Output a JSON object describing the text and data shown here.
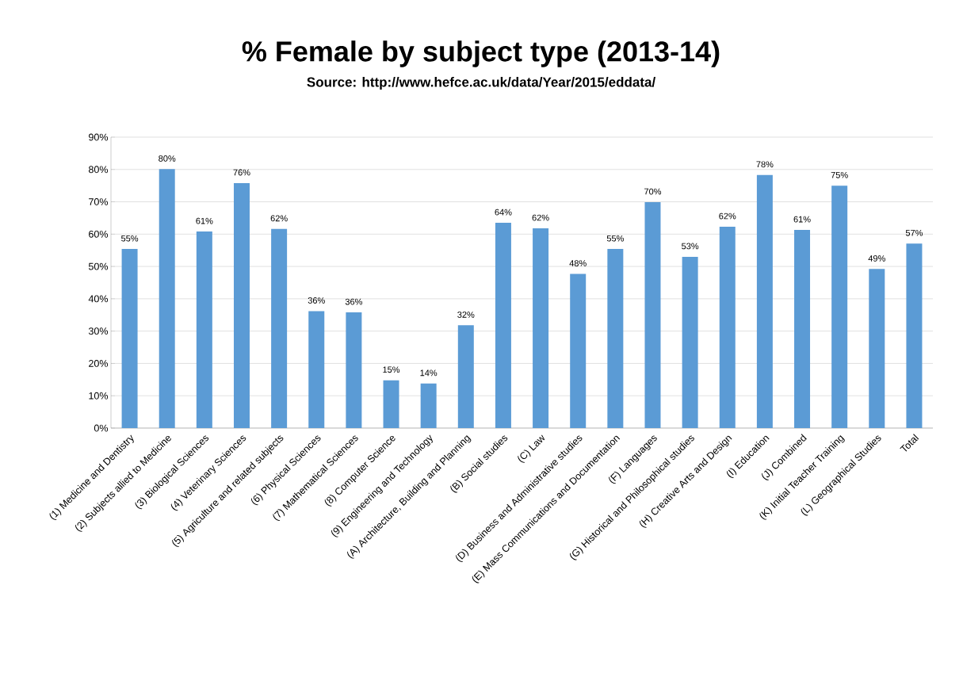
{
  "chart_data": {
    "type": "bar",
    "title": "% Female by subject type (2013-14)",
    "subtitle": "Source: http://www.hefce.ac.uk/data/Year/2015/eddata/",
    "categories": [
      "(1) Medicine and Dentistry",
      "(2) Subjects allied to Medicine",
      "(3) Biological Sciences",
      "(4) Veterinary Sciences",
      "(5) Agriculture and related subjects",
      "(6) Physical Sciences",
      "(7) Mathematical Sciences",
      "(8) Computer Science",
      "(9) Engineering and Technology",
      "(A) Architecture, Building and Planning",
      "(B) Social studies",
      "(C) Law",
      "(D) Business and Administrative studies",
      "(E) Mass Communications and Documentation",
      "(F) Languages",
      "(G) Historical and Philosophical studies",
      "(H) Creative Arts and Design",
      "(I) Education",
      "(J) Combined",
      "(K) Initial Teacher Training",
      "(L) Geographical Studies",
      "Total"
    ],
    "values": [
      55.4,
      80.1,
      60.8,
      75.8,
      61.6,
      36.2,
      35.8,
      14.8,
      13.8,
      31.8,
      63.5,
      61.8,
      47.7,
      55.4,
      69.9,
      53.0,
      62.3,
      78.3,
      61.3,
      75.0,
      49.2,
      57.1
    ],
    "value_labels": [
      "55%",
      "80%",
      "61%",
      "76%",
      "62%",
      "36%",
      "36%",
      "15%",
      "14%",
      "32%",
      "64%",
      "62%",
      "48%",
      "55%",
      "70%",
      "53%",
      "62%",
      "78%",
      "61%",
      "75%",
      "49%",
      "57%"
    ],
    "color": "#5b9bd5",
    "ylim": [
      0,
      90
    ],
    "yticks": [
      {
        "value": 0,
        "label": "0%"
      },
      {
        "value": 10,
        "label": "10%"
      },
      {
        "value": 20,
        "label": "20%"
      },
      {
        "value": 30,
        "label": "30%"
      },
      {
        "value": 40,
        "label": "40%"
      },
      {
        "value": 50,
        "label": "50%"
      },
      {
        "value": 60,
        "label": "60%"
      },
      {
        "value": 70,
        "label": "70%"
      },
      {
        "value": 80,
        "label": "80%"
      },
      {
        "value": 90,
        "label": "90%"
      }
    ],
    "grid": "y"
  }
}
